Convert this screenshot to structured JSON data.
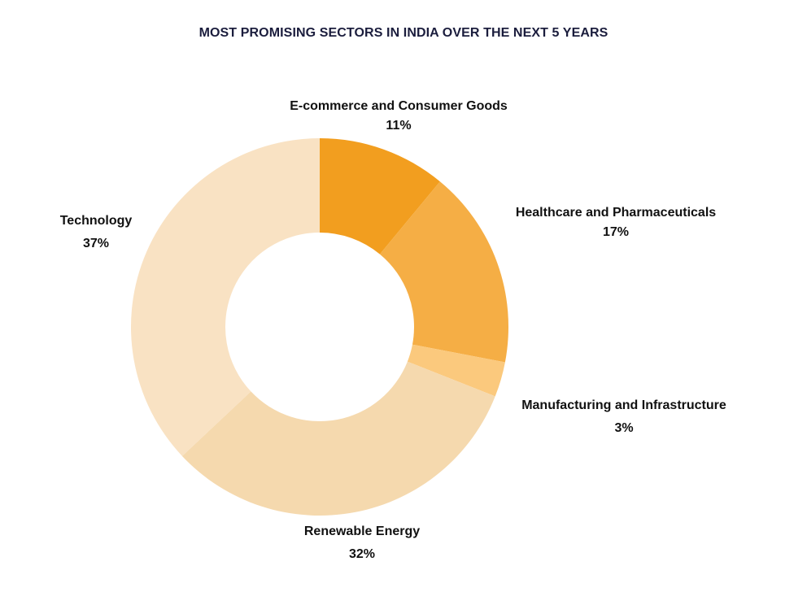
{
  "chart_data": {
    "type": "pie",
    "variant": "donut",
    "title": "MOST PROMISING SECTORS IN INDIA OVER THE NEXT 5 YEARS",
    "start_angle_deg": 0,
    "direction": "clockwise",
    "slices": [
      {
        "label": "E-commerce and Consumer Goods",
        "value": 11,
        "value_label": "11%",
        "color": "#f29e1f"
      },
      {
        "label": "Healthcare and Pharmaceuticals",
        "value": 17,
        "value_label": "17%",
        "color": "#f5ae45"
      },
      {
        "label": "Manufacturing and Infrastructure",
        "value": 3,
        "value_label": "3%",
        "color": "#fbc97d"
      },
      {
        "label": "Renewable Energy",
        "value": 32,
        "value_label": "32%",
        "color": "#f5d9ae"
      },
      {
        "label": "Technology",
        "value": 37,
        "value_label": "37%",
        "color": "#f9e2c3"
      }
    ],
    "legend": "none"
  }
}
